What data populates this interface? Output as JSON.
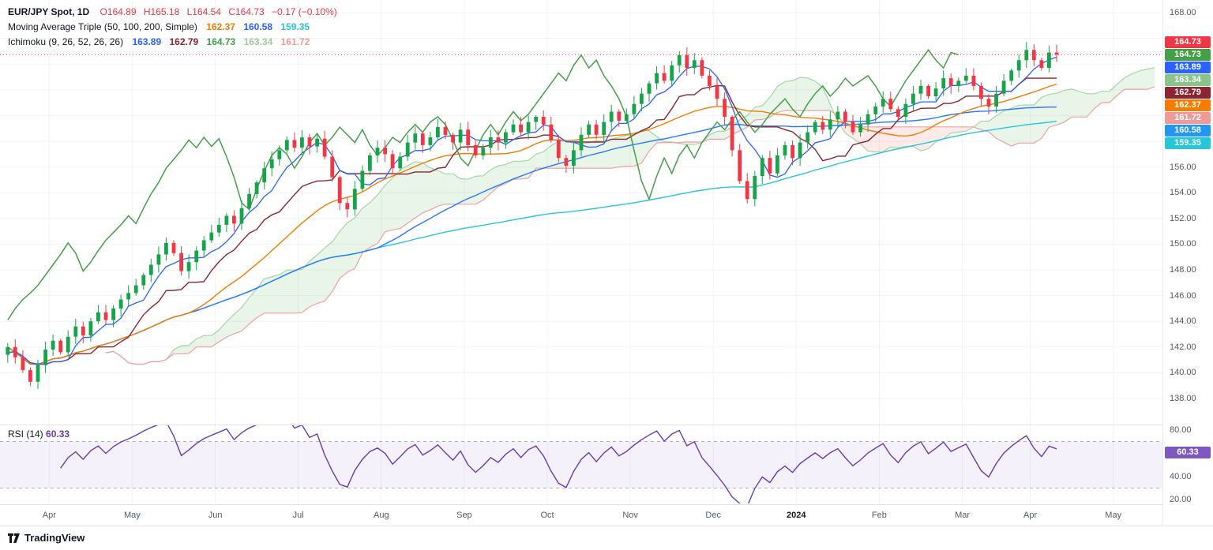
{
  "header": {
    "symbol_line": {
      "title": "EUR/JPY Spot, 1D",
      "o": "O164.89",
      "h": "H165.18",
      "l": "L164.54",
      "c": "C164.73",
      "change": "−0.17 (−0.10%)"
    },
    "ma_line": {
      "title": "Moving Average Triple (50, 100, 200, Simple)",
      "values": [
        "162.37",
        "160.58",
        "159.35"
      ]
    },
    "ichimoku_line": {
      "title": "Ichimoku (9, 26, 52, 26, 26)",
      "values": [
        "163.89",
        "162.79",
        "164.73",
        "163.34",
        "161.72"
      ]
    }
  },
  "price_axis": {
    "ticks": [
      "168.00",
      "156.00",
      "154.00",
      "152.00",
      "150.00",
      "148.00",
      "146.00",
      "144.00",
      "142.00",
      "140.00",
      "138.00"
    ],
    "tags": [
      {
        "text": "164.73",
        "bg": "#f23645"
      },
      {
        "text": "164.73",
        "bg": "#43a047"
      },
      {
        "text": "163.89",
        "bg": "#2962ff"
      },
      {
        "text": "163.34",
        "bg": "#89c48b"
      },
      {
        "text": "162.79",
        "bg": "#8c2431"
      },
      {
        "text": "162.37",
        "bg": "#f57c00"
      },
      {
        "text": "161.72",
        "bg": "#ef9a9a"
      },
      {
        "text": "160.58",
        "bg": "#2196f3"
      },
      {
        "text": "159.35",
        "bg": "#26c6da"
      }
    ]
  },
  "rsi_panel": {
    "title": "RSI (14)",
    "value": "60.33",
    "tag_bg": "#7e57c2",
    "ticks": [
      "80.00",
      "40.00",
      "20.00"
    ]
  },
  "time_axis": {
    "months": [
      {
        "label": "Apr",
        "slot": 6
      },
      {
        "label": "May",
        "slot": 17
      },
      {
        "label": "Jun",
        "slot": 28
      },
      {
        "label": "Jul",
        "slot": 39
      },
      {
        "label": "Aug",
        "slot": 50
      },
      {
        "label": "Sep",
        "slot": 61
      },
      {
        "label": "Oct",
        "slot": 72
      },
      {
        "label": "Nov",
        "slot": 83
      },
      {
        "label": "Dec",
        "slot": 94
      },
      {
        "label": "2024",
        "slot": 105,
        "emph": true
      },
      {
        "label": "Feb",
        "slot": 116
      },
      {
        "label": "Mar",
        "slot": 127
      },
      {
        "label": "Apr",
        "slot": 136
      },
      {
        "label": "May",
        "slot": 147
      }
    ]
  },
  "footer": {
    "brand": "TradingView"
  },
  "chart_data": {
    "type": "candlestick",
    "symbol": "EUR/JPY Spot",
    "interval": "1D",
    "last_bar": {
      "open": 164.89,
      "high": 165.18,
      "low": 164.54,
      "close": 164.73,
      "change": -0.17,
      "change_pct": -0.1
    },
    "price_axis_range": [
      138,
      168
    ],
    "candles": {
      "sampling": "closes estimated from chart, ~2 trading days per point, Apr 2023 – Apr 2024",
      "close": [
        142.0,
        141.2,
        140.2,
        139.3,
        140.6,
        141.8,
        142.5,
        141.6,
        142.8,
        143.6,
        142.9,
        144.0,
        144.7,
        144.1,
        145.0,
        145.7,
        146.2,
        146.8,
        147.6,
        148.4,
        149.2,
        150.1,
        149.3,
        147.9,
        148.6,
        149.5,
        150.3,
        150.9,
        151.5,
        152.2,
        151.6,
        152.8,
        153.9,
        154.8,
        155.9,
        156.6,
        157.3,
        158.1,
        157.5,
        158.3,
        157.6,
        158.2,
        156.8,
        155.2,
        153.2,
        152.7,
        154.3,
        155.7,
        156.9,
        157.5,
        157.0,
        155.9,
        156.8,
        157.9,
        158.6,
        157.7,
        158.3,
        159.1,
        158.5,
        157.9,
        158.9,
        157.7,
        156.9,
        157.5,
        158.3,
        157.9,
        158.7,
        159.3,
        158.7,
        159.5,
        159.9,
        159.3,
        158.1,
        156.7,
        156.1,
        157.3,
        158.5,
        159.3,
        158.5,
        159.5,
        160.3,
        159.6,
        160.1,
        160.9,
        161.7,
        162.5,
        163.3,
        162.7,
        163.9,
        164.7,
        163.7,
        164.3,
        163.1,
        162.3,
        161.3,
        159.9,
        157.3,
        154.9,
        153.5,
        155.3,
        156.7,
        155.5,
        156.9,
        157.7,
        156.7,
        157.9,
        158.7,
        159.5,
        158.9,
        159.7,
        160.3,
        159.5,
        158.7,
        159.3,
        160.1,
        160.7,
        161.3,
        160.5,
        159.9,
        160.9,
        161.7,
        162.3,
        161.5,
        162.1,
        162.9,
        162.3,
        162.7,
        163.1,
        162.3,
        161.3,
        160.7,
        161.7,
        162.7,
        163.5,
        164.3,
        165.1,
        164.3,
        163.7,
        164.9,
        164.73
      ]
    },
    "indicators": {
      "sma_triple": {
        "windows_days": [
          50,
          100,
          200
        ],
        "style": "Simple",
        "last": [
          162.37,
          160.58,
          159.35
        ]
      },
      "ichimoku": {
        "params": [
          9,
          26,
          52,
          26,
          26
        ],
        "last": {
          "tenkan": 163.89,
          "kijun": 162.79,
          "chikou": 164.73,
          "senkou_a": 163.34,
          "senkou_b": 161.72
        }
      },
      "rsi": {
        "period": 14,
        "last": 60.33,
        "levels": [
          70,
          30
        ]
      }
    },
    "colors": {
      "up": "#16a34a",
      "down": "#f23645",
      "sma50": "#f57c00",
      "sma100": "#2979ff",
      "sma200": "#26c6da",
      "tenkan": "#2962ff",
      "kijun": "#8c2431",
      "chikou": "#43a047",
      "senkou_a": "#a5d6a7",
      "senkou_b": "#f0a0a0",
      "cloud_up": "rgba(76,175,80,0.13)",
      "cloud_down": "rgba(244,67,54,0.11)",
      "rsi": "#673ab7",
      "rsi_band": "rgba(103,58,183,0.07)",
      "rsi_level": "#9598a1",
      "grid": "#f0f3fa",
      "price_line": "#f23645"
    }
  }
}
